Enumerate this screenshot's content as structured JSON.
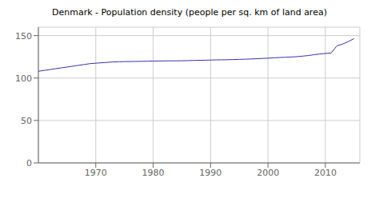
{
  "chart_data": {
    "type": "line",
    "title": "Denmark - Population density (people per sq. km of land area)",
    "x": [
      1960,
      1961,
      1962,
      1963,
      1964,
      1965,
      1966,
      1967,
      1968,
      1969,
      1970,
      1971,
      1972,
      1973,
      1974,
      1975,
      1976,
      1977,
      1978,
      1979,
      1980,
      1981,
      1982,
      1983,
      1984,
      1985,
      1986,
      1987,
      1988,
      1989,
      1990,
      1991,
      1992,
      1993,
      1994,
      1995,
      1996,
      1997,
      1998,
      1999,
      2000,
      2001,
      2002,
      2003,
      2004,
      2005,
      2006,
      2007,
      2008,
      2009,
      2010,
      2011,
      2012,
      2013,
      2014,
      2015
    ],
    "values": [
      108.0,
      109.0,
      110.0,
      111.0,
      112.0,
      113.0,
      114.0,
      115.0,
      116.0,
      117.0,
      117.5,
      118.0,
      118.5,
      119.0,
      119.2,
      119.4,
      119.5,
      119.6,
      119.7,
      119.8,
      120.0,
      120.1,
      120.2,
      120.3,
      120.3,
      120.4,
      120.5,
      120.7,
      120.9,
      121.0,
      121.2,
      121.4,
      121.5,
      121.6,
      121.8,
      122.0,
      122.2,
      122.5,
      122.8,
      123.1,
      123.4,
      123.8,
      124.2,
      124.5,
      124.8,
      125.2,
      125.8,
      126.5,
      127.5,
      128.3,
      129.0,
      129.5,
      138.0,
      140.0,
      143.0,
      146.5
    ],
    "color": "#3333aa",
    "xlim": [
      1960,
      2016
    ],
    "ylim": [
      0,
      160
    ],
    "xticks": [
      1970,
      1980,
      1990,
      2000,
      2010
    ],
    "yticks": [
      0,
      50,
      100,
      150
    ],
    "grid": true
  }
}
